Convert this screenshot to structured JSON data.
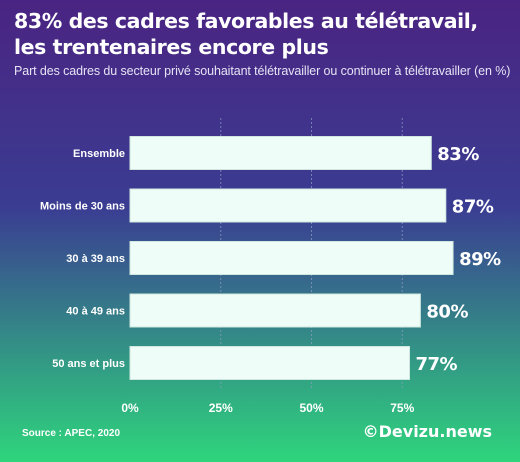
{
  "title_line1": "83% des cadres favorables au télétravail,",
  "title_line2": "les trentenaires encore plus",
  "subtitle": "Part des cadres du secteur privé souhaitant télétravailler ou continuer à télétravailler (en %)",
  "source": "Source : APEC, 2020",
  "brand": "©Devizu.news",
  "colors": {
    "background_top": "#4a2482",
    "background_bottom": "#2ed57c",
    "bar_fill": "#eefdf7",
    "bar_stroke": "#cfe7de",
    "grid": "#8fa0c4",
    "text": "#ffffff"
  },
  "chart_data": {
    "type": "bar",
    "orientation": "horizontal",
    "categories": [
      "Ensemble",
      "Moins de 30 ans",
      "30 à 39 ans",
      "40 à 49 ans",
      "50 ans et plus"
    ],
    "values": [
      83,
      87,
      89,
      80,
      77
    ],
    "value_labels": [
      "83%",
      "87%",
      "89%",
      "80%",
      "77%"
    ],
    "xlim": [
      0,
      100
    ],
    "x_ticks": [
      0,
      25,
      50,
      75
    ],
    "x_tick_labels": [
      "0%",
      "25%",
      "50%",
      "75%"
    ],
    "grid": true
  }
}
